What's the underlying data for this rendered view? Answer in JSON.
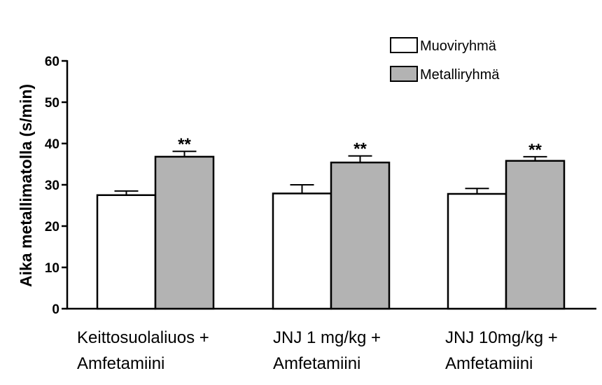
{
  "chart_data": {
    "type": "bar",
    "title": "",
    "xlabel": "",
    "ylabel": "Aika metallimatolla (s/min)",
    "ylim": [
      0,
      60
    ],
    "yticks": [
      0,
      10,
      20,
      30,
      40,
      50,
      60
    ],
    "categories": [
      {
        "line1": "Keittosuolaliuos +",
        "line2": "Amfetamiini"
      },
      {
        "line1": "JNJ 1 mg/kg +",
        "line2": "Amfetamiini"
      },
      {
        "line1": "JNJ 10mg/kg +",
        "line2": "Amfetamiini"
      }
    ],
    "series": [
      {
        "name": "Muoviryhmä",
        "color": "#ffffff",
        "values": [
          27.5,
          27.9,
          27.8
        ],
        "errors": [
          1.0,
          2.1,
          1.3
        ]
      },
      {
        "name": "Metalliryhmä",
        "color": "#b3b3b3",
        "values": [
          36.8,
          35.4,
          35.8
        ],
        "errors": [
          1.3,
          1.6,
          1.0
        ]
      }
    ],
    "annotations": [
      "**",
      "**",
      "**"
    ],
    "legend_position": "top-right"
  }
}
